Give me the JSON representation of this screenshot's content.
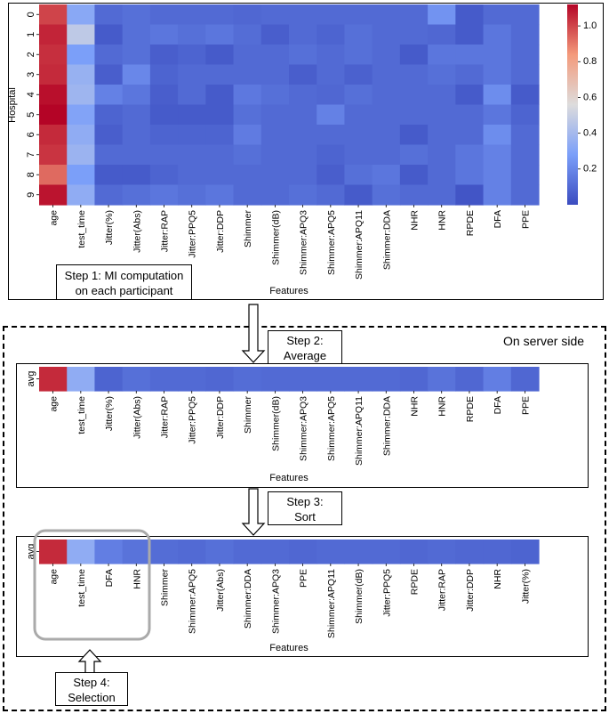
{
  "features": [
    "age",
    "test_time",
    "Jitter(%)",
    "Jitter(Abs)",
    "Jitter:RAP",
    "Jitter:PPQ5",
    "Jitter:DDP",
    "Shimmer",
    "Shimmer(dB)",
    "Shimmer:APQ3",
    "Shimmer:APQ5",
    "Shimmer:APQ11",
    "Shimmer:DDA",
    "NHR",
    "HNR",
    "RPDE",
    "DFA",
    "PPE"
  ],
  "colors": {
    "low": "#3b4cc0",
    "mid": "#dddddd",
    "high": "#b40426",
    "border": "#000000",
    "selection": "#aaaaaa"
  },
  "chart_data": [
    {
      "type": "heatmap",
      "title": "",
      "xlabel": "Features",
      "ylabel": "Hospital",
      "rows": [
        "0",
        "1",
        "2",
        "3",
        "4",
        "5",
        "6",
        "7",
        "8",
        "9"
      ],
      "columns": [
        "age",
        "test_time",
        "Jitter(%)",
        "Jitter(Abs)",
        "Jitter:RAP",
        "Jitter:PPQ5",
        "Jitter:DDP",
        "Shimmer",
        "Shimmer(dB)",
        "Shimmer:APQ3",
        "Shimmer:APQ5",
        "Shimmer:APQ11",
        "Shimmer:DDA",
        "NHR",
        "HNR",
        "RPDE",
        "DFA",
        "PPE"
      ],
      "values": [
        [
          1.0,
          0.32,
          0.1,
          0.12,
          0.1,
          0.1,
          0.1,
          0.09,
          0.1,
          0.1,
          0.1,
          0.1,
          0.1,
          0.1,
          0.24,
          0.05,
          0.1,
          0.1
        ],
        [
          1.06,
          0.47,
          0.05,
          0.12,
          0.14,
          0.12,
          0.14,
          0.11,
          0.06,
          0.1,
          0.08,
          0.12,
          0.1,
          0.1,
          0.09,
          0.05,
          0.14,
          0.1
        ],
        [
          1.04,
          0.28,
          0.1,
          0.12,
          0.06,
          0.08,
          0.05,
          0.1,
          0.1,
          0.12,
          0.1,
          0.12,
          0.1,
          0.05,
          0.14,
          0.14,
          0.14,
          0.1
        ],
        [
          1.05,
          0.36,
          0.06,
          0.2,
          0.08,
          0.1,
          0.1,
          0.1,
          0.1,
          0.06,
          0.1,
          0.07,
          0.1,
          0.1,
          0.12,
          0.1,
          0.14,
          0.1
        ],
        [
          1.1,
          0.38,
          0.18,
          0.14,
          0.06,
          0.1,
          0.05,
          0.15,
          0.12,
          0.1,
          0.09,
          0.12,
          0.1,
          0.1,
          0.1,
          0.05,
          0.22,
          0.05
        ],
        [
          1.12,
          0.3,
          0.08,
          0.1,
          0.05,
          0.05,
          0.05,
          0.12,
          0.1,
          0.1,
          0.18,
          0.1,
          0.1,
          0.1,
          0.1,
          0.1,
          0.14,
          0.08
        ],
        [
          1.05,
          0.34,
          0.06,
          0.1,
          0.08,
          0.08,
          0.08,
          0.16,
          0.1,
          0.1,
          0.1,
          0.1,
          0.1,
          0.05,
          0.1,
          0.1,
          0.22,
          0.1
        ],
        [
          1.03,
          0.37,
          0.1,
          0.1,
          0.1,
          0.1,
          0.1,
          0.12,
          0.1,
          0.1,
          0.08,
          0.1,
          0.1,
          0.12,
          0.1,
          0.14,
          0.18,
          0.1
        ],
        [
          0.93,
          0.28,
          0.05,
          0.05,
          0.08,
          0.1,
          0.1,
          0.1,
          0.1,
          0.1,
          0.06,
          0.12,
          0.14,
          0.05,
          0.1,
          0.14,
          0.18,
          0.1
        ],
        [
          1.09,
          0.34,
          0.1,
          0.12,
          0.14,
          0.12,
          0.14,
          0.1,
          0.1,
          0.12,
          0.1,
          0.05,
          0.12,
          0.1,
          0.1,
          0.03,
          0.18,
          0.1
        ]
      ],
      "vmin": 0.0,
      "vmax": 1.12,
      "colorbar": {
        "ticks": [
          0.2,
          0.4,
          0.6,
          0.8,
          1.0
        ],
        "labels": [
          "0.2",
          "0.4",
          "0.6",
          "0.8",
          "1.0"
        ],
        "cmap": "coolwarm"
      }
    },
    {
      "type": "heatmap",
      "xlabel": "Features",
      "ylabel": "",
      "rows": [
        "avg"
      ],
      "columns": [
        "age",
        "test_time",
        "Jitter(%)",
        "Jitter(Abs)",
        "Jitter:RAP",
        "Jitter:PPQ5",
        "Jitter:DDP",
        "Shimmer",
        "Shimmer(dB)",
        "Shimmer:APQ3",
        "Shimmer:APQ5",
        "Shimmer:APQ11",
        "Shimmer:DDA",
        "NHR",
        "HNR",
        "RPDE",
        "DFA",
        "PPE"
      ],
      "values": [
        [
          1.05,
          0.34,
          0.08,
          0.12,
          0.1,
          0.1,
          0.09,
          0.11,
          0.1,
          0.1,
          0.1,
          0.1,
          0.1,
          0.09,
          0.13,
          0.09,
          0.17,
          0.09
        ]
      ],
      "vmin": 0.0,
      "vmax": 1.12
    },
    {
      "type": "heatmap",
      "xlabel": "Features",
      "ylabel": "",
      "rows": [
        "avg"
      ],
      "columns": [
        "age",
        "test_time",
        "DFA",
        "HNR",
        "Shimmer",
        "Shimmer:APQ5",
        "Jitter(Abs)",
        "Shimmer:DDA",
        "Shimmer:APQ3",
        "PPE",
        "Shimmer:APQ11",
        "Shimmer(dB)",
        "Jitter:PPQ5",
        "RPDE",
        "Jitter:RAP",
        "Jitter:DDP",
        "NHR",
        "Jitter(%)"
      ],
      "values": [
        [
          1.05,
          0.34,
          0.17,
          0.13,
          0.11,
          0.1,
          0.12,
          0.1,
          0.1,
          0.09,
          0.1,
          0.1,
          0.1,
          0.09,
          0.1,
          0.09,
          0.09,
          0.08
        ]
      ],
      "vmin": 0.0,
      "vmax": 1.12,
      "selected_count": 4
    }
  ],
  "steps": {
    "s1": {
      "line1": "Step 1: MI computation",
      "line2": "on each participant"
    },
    "s2": {
      "line1": "Step 2:",
      "line2": "Average"
    },
    "s3": {
      "line1": "Step 3:",
      "line2": "Sort"
    },
    "s4": {
      "line1": "Step 4:",
      "line2": "Selection"
    }
  },
  "server_label": "On server side"
}
